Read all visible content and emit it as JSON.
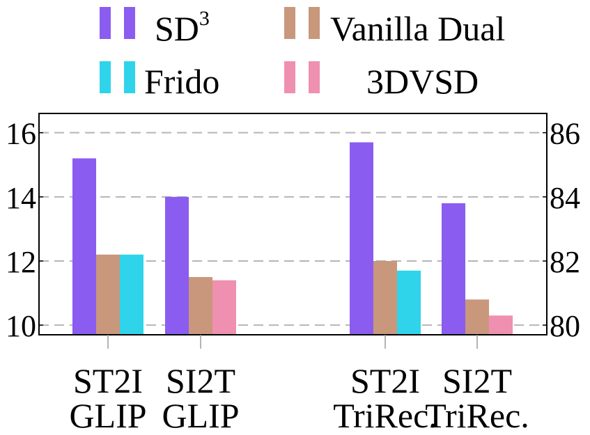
{
  "chart_data": {
    "type": "bar",
    "groups": [
      {
        "line1": "ST2I",
        "line2": "GLIP",
        "axis": "left"
      },
      {
        "line1": "SI2T",
        "line2": "GLIP",
        "axis": "left"
      },
      {
        "line1": "ST2I",
        "line2": "TriRec.",
        "axis": "right"
      },
      {
        "line1": "SI2T",
        "line2": "TriRec.",
        "axis": "right"
      }
    ],
    "series": [
      {
        "name": "SD",
        "superscript": "3",
        "color": "#8b5cf0",
        "values": [
          15.2,
          14.0,
          85.7,
          83.8
        ]
      },
      {
        "name": "Vanilla Dual",
        "color": "#c9977c",
        "values": [
          12.2,
          11.5,
          82.0,
          80.8
        ]
      },
      {
        "name": "Frido",
        "color": "#2fd4ea",
        "values": [
          12.2,
          null,
          81.7,
          null
        ]
      },
      {
        "name": "3DVSD",
        "color": "#ef90b0",
        "values": [
          null,
          11.4,
          null,
          80.3
        ]
      }
    ],
    "left_axis": {
      "ylim": [
        9.7,
        16.6
      ],
      "ticks": [
        10,
        12,
        14,
        16
      ]
    },
    "right_axis": {
      "ylim": [
        79.7,
        86.6
      ],
      "ticks": [
        80,
        82,
        84,
        86
      ]
    },
    "grid": true,
    "gridlines": [
      10,
      12,
      14,
      16
    ],
    "legend": "top"
  }
}
